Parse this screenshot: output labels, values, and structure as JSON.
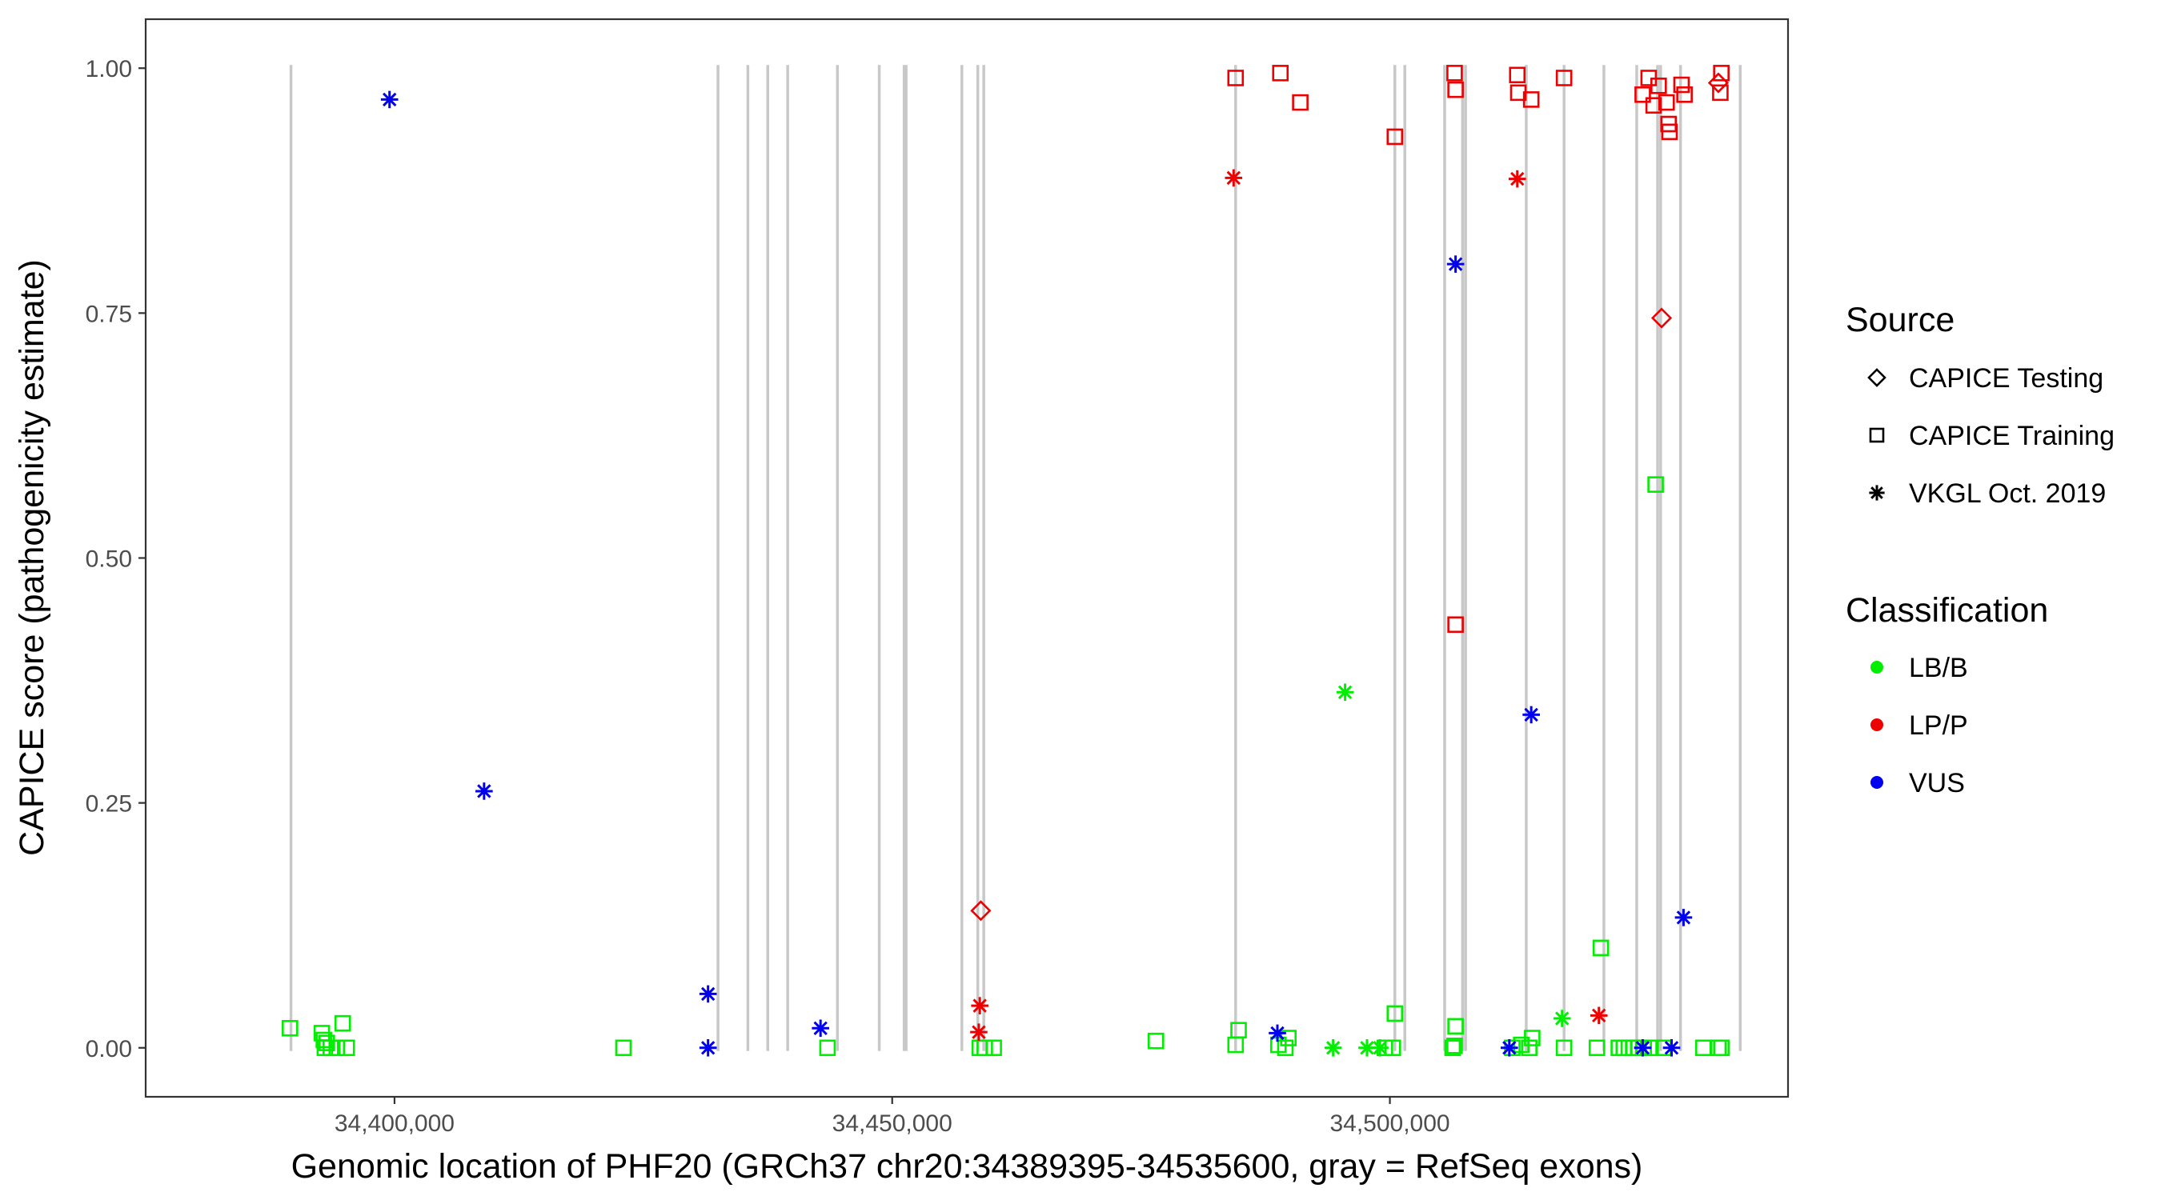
{
  "chart_data": {
    "type": "scatter",
    "title": "",
    "xlabel": "Genomic location of PHF20 (GRCh37 chr20:34389395-34535600, gray = RefSeq exons)",
    "ylabel": "CAPICE score (pathogenicity estimate)",
    "xlim": [
      34375000,
      34540000
    ],
    "ylim": [
      -0.05,
      1.05
    ],
    "x_ticks": [
      34400000,
      34450000,
      34500000
    ],
    "x_tick_labels": [
      "34,400,000",
      "34,450,000",
      "34,500,000"
    ],
    "y_ticks": [
      0,
      0.25,
      0.5,
      0.75,
      1
    ],
    "y_tick_labels": [
      "0.00",
      "0.25",
      "0.50",
      "0.75",
      "1.00"
    ],
    "grid": false,
    "exons": [
      34389600,
      34432500,
      34435500,
      34437500,
      34439500,
      34444500,
      34448700,
      34451200,
      34451400,
      34457000,
      34458600,
      34459200,
      34484500,
      34500500,
      34501500,
      34505500,
      34507300,
      34507600,
      34513700,
      34517500,
      34521500,
      34524800,
      34526900,
      34527200,
      34529200,
      34535200
    ],
    "legend": {
      "placement": "right",
      "source_title": "Source",
      "source_items": [
        {
          "label": "CAPICE Testing",
          "shape": "diamond"
        },
        {
          "label": "CAPICE Training",
          "shape": "square"
        },
        {
          "label": "VKGL Oct. 2019",
          "shape": "asterisk"
        }
      ],
      "class_title": "Classification",
      "class_items": [
        {
          "label": "LB/B",
          "color": "#00ee00"
        },
        {
          "label": "LP/P",
          "color": "#ee0000"
        },
        {
          "label": "VUS",
          "color": "#0000ee"
        }
      ]
    },
    "series": [
      {
        "source": "CAPICE Training",
        "classification": "LB/B",
        "color": "#00ee00",
        "shape": "square",
        "points": [
          [
            34389500,
            0.02
          ],
          [
            34392700,
            0.015
          ],
          [
            34392900,
            0.008
          ],
          [
            34393200,
            0.005
          ],
          [
            34393000,
            0.0
          ],
          [
            34393600,
            0.0
          ],
          [
            34394200,
            0.0
          ],
          [
            34394800,
            0.025
          ],
          [
            34395200,
            0.0
          ],
          [
            34423000,
            0.0
          ],
          [
            34443500,
            0.0
          ],
          [
            34458800,
            0.0
          ],
          [
            34459300,
            0.0
          ],
          [
            34460200,
            0.0
          ],
          [
            34476500,
            0.007
          ],
          [
            34484500,
            0.003
          ],
          [
            34484800,
            0.018
          ],
          [
            34488800,
            0.003
          ],
          [
            34489500,
            0.0
          ],
          [
            34489800,
            0.01
          ],
          [
            34499500,
            0.0
          ],
          [
            34500300,
            0.0
          ],
          [
            34500500,
            0.035
          ],
          [
            34506300,
            0.0
          ],
          [
            34506500,
            0.002
          ],
          [
            34506600,
            0.022
          ],
          [
            34512300,
            0.0
          ],
          [
            34513200,
            0.003
          ],
          [
            34514000,
            0.0
          ],
          [
            34514300,
            0.01
          ],
          [
            34517500,
            0.0
          ],
          [
            34520800,
            0.0
          ],
          [
            34521200,
            0.102
          ],
          [
            34523000,
            0.0
          ],
          [
            34523500,
            0.0
          ],
          [
            34524000,
            0.0
          ],
          [
            34524500,
            0.0
          ],
          [
            34525000,
            0.0
          ],
          [
            34525500,
            0.0
          ],
          [
            34526200,
            0.0
          ],
          [
            34526700,
            0.575
          ],
          [
            34527500,
            0.0
          ],
          [
            34531500,
            0.0
          ],
          [
            34533000,
            0.0
          ],
          [
            34533300,
            0.0
          ]
        ]
      },
      {
        "source": "CAPICE Training",
        "classification": "LP/P",
        "color": "#ee0000",
        "shape": "square",
        "points": [
          [
            34484500,
            0.99
          ],
          [
            34489000,
            0.995
          ],
          [
            34491000,
            0.965
          ],
          [
            34500500,
            0.93
          ],
          [
            34506500,
            0.995
          ],
          [
            34506600,
            0.978
          ],
          [
            34506600,
            0.432
          ],
          [
            34512800,
            0.993
          ],
          [
            34512900,
            0.975
          ],
          [
            34514200,
            0.968
          ],
          [
            34517500,
            0.99
          ],
          [
            34525400,
            0.973
          ],
          [
            34526000,
            0.99
          ],
          [
            34526500,
            0.962
          ],
          [
            34527000,
            0.982
          ],
          [
            34527800,
            0.965
          ],
          [
            34528000,
            0.943
          ],
          [
            34528100,
            0.935
          ],
          [
            34529300,
            0.983
          ],
          [
            34529600,
            0.973
          ],
          [
            34533200,
            0.975
          ],
          [
            34533300,
            0.995
          ]
        ]
      },
      {
        "source": "CAPICE Testing",
        "classification": "LP/P",
        "color": "#ee0000",
        "shape": "diamond",
        "points": [
          [
            34458900,
            0.14
          ],
          [
            34527300,
            0.745
          ],
          [
            34533000,
            0.985
          ]
        ]
      },
      {
        "source": "VKGL Oct. 2019",
        "classification": "LB/B",
        "color": "#00ee00",
        "shape": "asterisk",
        "points": [
          [
            34495500,
            0.363
          ],
          [
            34494300,
            0.0
          ],
          [
            34497700,
            0.0
          ],
          [
            34499000,
            0.0
          ],
          [
            34517300,
            0.03
          ]
        ]
      },
      {
        "source": "VKGL Oct. 2019",
        "classification": "LP/P",
        "color": "#ee0000",
        "shape": "asterisk",
        "points": [
          [
            34484300,
            0.888
          ],
          [
            34512800,
            0.887
          ],
          [
            34458800,
            0.043
          ],
          [
            34458700,
            0.016
          ],
          [
            34521000,
            0.033
          ]
        ]
      },
      {
        "source": "VKGL Oct. 2019",
        "classification": "VUS",
        "color": "#0000ee",
        "shape": "asterisk",
        "points": [
          [
            34399500,
            0.968
          ],
          [
            34409000,
            0.262
          ],
          [
            34431500,
            0.055
          ],
          [
            34431500,
            0.0
          ],
          [
            34442800,
            0.02
          ],
          [
            34488700,
            0.015
          ],
          [
            34506600,
            0.8
          ],
          [
            34514200,
            0.34
          ],
          [
            34512000,
            0.0
          ],
          [
            34525400,
            0.0
          ],
          [
            34528300,
            0.0
          ],
          [
            34529500,
            0.133
          ]
        ]
      }
    ]
  }
}
